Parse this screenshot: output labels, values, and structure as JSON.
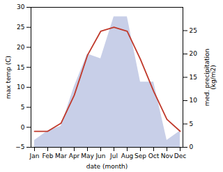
{
  "chart_data": {
    "type": "line",
    "categories": [
      "Jan",
      "Feb",
      "Mar",
      "Apr",
      "May",
      "Jun",
      "Jul",
      "Aug",
      "Sep",
      "Oct",
      "Nov",
      "Dec"
    ],
    "series": [
      {
        "type": "area",
        "axis": "y2",
        "color": "#c8cfe8",
        "values": [
          1.5,
          3.5,
          4.5,
          13,
          20,
          19,
          28,
          28,
          14,
          14,
          1.5,
          3.5
        ]
      },
      {
        "type": "line",
        "axis": "y",
        "color": "#c0392b",
        "values": [
          -1,
          -1,
          1,
          8,
          18,
          24,
          25,
          24,
          17,
          9,
          2,
          -1
        ]
      }
    ],
    "xlabel": "date (month)",
    "ylabel": "max temp (C)",
    "y2label": "med. precipitation\n(kg/m2)",
    "ylim": [
      -5,
      30
    ],
    "yticks": [
      -5,
      0,
      5,
      10,
      15,
      20,
      25,
      30
    ],
    "y2lim": [
      0,
      30
    ],
    "y2ticks": [
      0,
      5,
      10,
      15,
      20,
      25
    ]
  }
}
